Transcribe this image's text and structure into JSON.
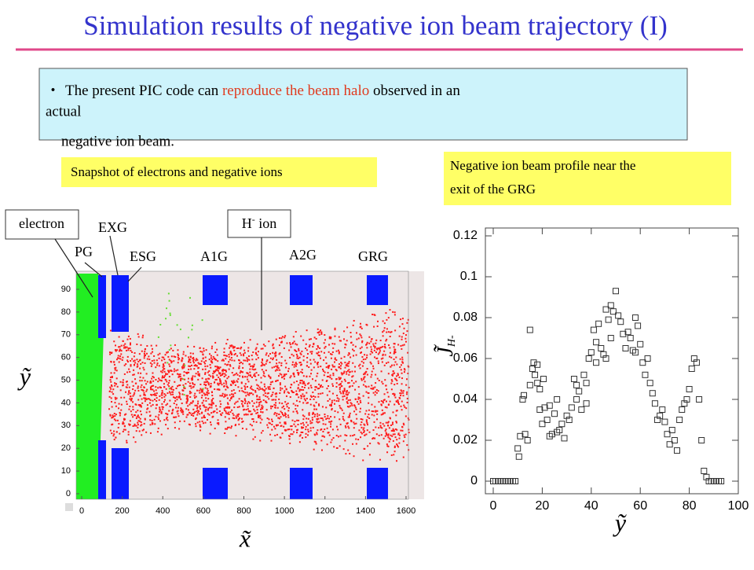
{
  "title": "Simulation results of negative ion beam trajectory (I)",
  "bullet": {
    "marker": "・",
    "line1_start": "The present PIC code can ",
    "highlight": "reproduce the beam halo",
    "line1_end": " observed in an",
    "line2": "actual",
    "line3": "negative ion beam."
  },
  "snapshot_label": "Snapshot of electrons and negative ions",
  "profile_label": [
    "Negative ion beam profile near the",
    "exit of the GRG"
  ],
  "callouts": {
    "electron": "electron",
    "ion_base": "H",
    "ion_sup": "-",
    "ion_rest": " ion"
  },
  "grids": {
    "EXG": "EXG",
    "PG": "PG",
    "ESG": "ESG",
    "A1G": "A1G",
    "A2G": "A2G",
    "GRG": "GRG"
  },
  "chart_data": [
    {
      "type": "snapshot",
      "x_label": "x̃",
      "y_label": "ỹ",
      "xlim": [
        0,
        1600
      ],
      "ylim": [
        0,
        90
      ],
      "xticks": [
        0,
        200,
        400,
        600,
        800,
        1000,
        1200,
        1400,
        1600
      ],
      "yticks": [
        0,
        10,
        20,
        30,
        40,
        50,
        60,
        70,
        80,
        90
      ]
    },
    {
      "type": "scatter",
      "x_label": "ỹ",
      "y_label": {
        "base": "J̃",
        "sub": "H-"
      },
      "xlim": [
        0,
        100
      ],
      "ylim": [
        0,
        0.12
      ],
      "xticks": [
        0,
        20,
        40,
        60,
        80,
        100
      ],
      "yticks": [
        0,
        0.02,
        0.04,
        0.06,
        0.08,
        0.1,
        0.12
      ],
      "marker_color": "#333333",
      "x": [
        0,
        1,
        2,
        3,
        4,
        5,
        6,
        7,
        8,
        9,
        10,
        10.5,
        11,
        12,
        12.5,
        13,
        14,
        15,
        15,
        16,
        16.5,
        17,
        18,
        18,
        19,
        19,
        20,
        20.5,
        21,
        22,
        23,
        23,
        24,
        25,
        26,
        26,
        27,
        28,
        29,
        30,
        31,
        32,
        33,
        34,
        34,
        35,
        36,
        37,
        38,
        38,
        39,
        40,
        41,
        42,
        42,
        43,
        44,
        45,
        46,
        46,
        47,
        48,
        48,
        49,
        50,
        51,
        52,
        53,
        54,
        55,
        56,
        57,
        58,
        58,
        59,
        60,
        61,
        62,
        63,
        64,
        65,
        66,
        67,
        68,
        69,
        70,
        71,
        72,
        73,
        74,
        75,
        76,
        77,
        78,
        79,
        80,
        81,
        82,
        83,
        84,
        85,
        86,
        87,
        88,
        89,
        90,
        91,
        92,
        93
      ],
      "values": [
        0,
        0,
        0,
        0,
        0,
        0,
        0,
        0,
        0,
        0,
        0.016,
        0.012,
        0.022,
        0.04,
        0.042,
        0.023,
        0.02,
        0.074,
        0.047,
        0.055,
        0.058,
        0.052,
        0.057,
        0.048,
        0.045,
        0.035,
        0.028,
        0.05,
        0.036,
        0.03,
        0.022,
        0.037,
        0.023,
        0.033,
        0.024,
        0.04,
        0.025,
        0.028,
        0.021,
        0.032,
        0.03,
        0.036,
        0.05,
        0.047,
        0.04,
        0.044,
        0.035,
        0.052,
        0.038,
        0.048,
        0.06,
        0.063,
        0.074,
        0.058,
        0.068,
        0.077,
        0.065,
        0.062,
        0.084,
        0.06,
        0.079,
        0.086,
        0.07,
        0.083,
        0.093,
        0.081,
        0.078,
        0.072,
        0.065,
        0.073,
        0.07,
        0.064,
        0.08,
        0.063,
        0.076,
        0.067,
        0.058,
        0.052,
        0.06,
        0.048,
        0.043,
        0.038,
        0.03,
        0.032,
        0.035,
        0.029,
        0.023,
        0.018,
        0.025,
        0.02,
        0.015,
        0.03,
        0.035,
        0.038,
        0.04,
        0.045,
        0.055,
        0.06,
        0.058,
        0.04,
        0.02,
        0.005,
        0.002,
        0,
        0,
        0,
        0,
        0,
        0
      ]
    }
  ]
}
